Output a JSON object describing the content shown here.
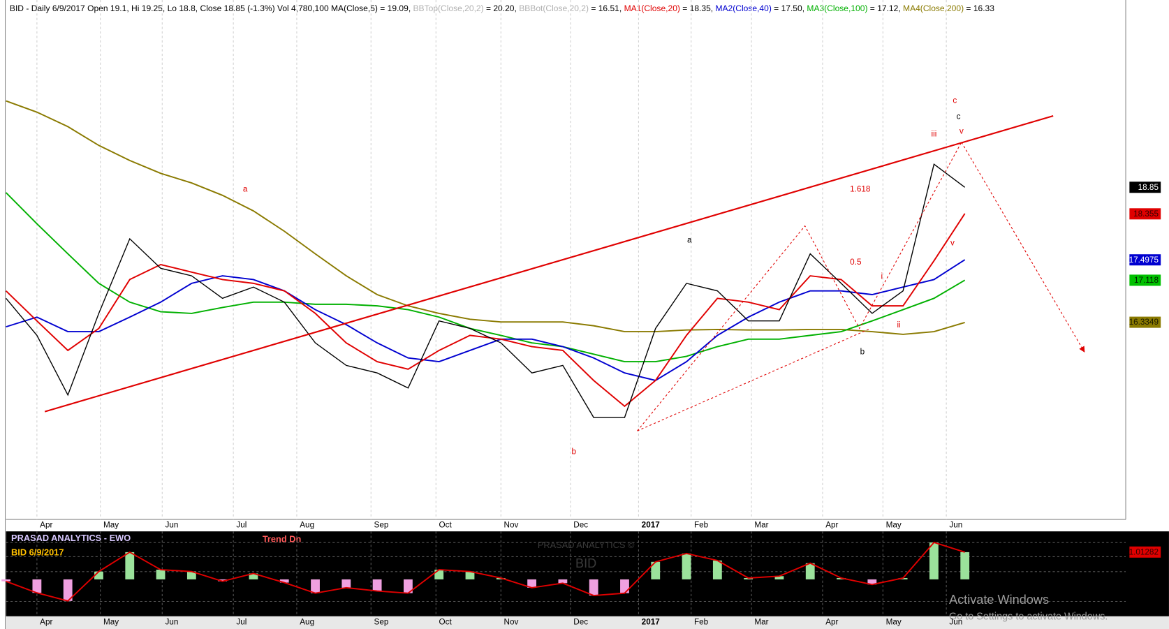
{
  "chart_data": [
    {
      "type": "line",
      "header": [
        {
          "text": "BID - Daily 6/9/2017 Open 19.1, Hi 19.25, Lo 18.8, Close 18.85 (-1.3%) Vol 4,780,100 MA(Close,5) = 19.09, ",
          "color": "#000000"
        },
        {
          "text": "BBTop(Close,20,2)",
          "color": "#b0b0b0"
        },
        {
          "text": " = 20.20, ",
          "color": "#000000"
        },
        {
          "text": "BBBot(Close,20,2)",
          "color": "#b0b0b0"
        },
        {
          "text": " = 16.51, ",
          "color": "#000000"
        },
        {
          "text": "MA1(Close,20)",
          "color": "#e00000"
        },
        {
          "text": " = 18.35, ",
          "color": "#000000"
        },
        {
          "text": "MA2(Close,40)",
          "color": "#0000d0"
        },
        {
          "text": " = 17.50, ",
          "color": "#000000"
        },
        {
          "text": "MA3(Close,100)",
          "color": "#00b000"
        },
        {
          "text": " = 17.12, ",
          "color": "#000000"
        },
        {
          "text": "MA4(Close,200)",
          "color": "#8a7a00"
        },
        {
          "text": " = 16.33",
          "color": "#000000"
        }
      ],
      "x": [
        0,
        2,
        4,
        6,
        8,
        10,
        12,
        14,
        16,
        18,
        20,
        22,
        24,
        26,
        28,
        30,
        32,
        34,
        36,
        38,
        40,
        42,
        44,
        46,
        48,
        50,
        52,
        54,
        56,
        58,
        60,
        62
      ],
      "xlim": [
        0,
        72.4
      ],
      "xticks": [
        {
          "value": 2.0,
          "label": "Apr"
        },
        {
          "value": 6.1,
          "label": "May"
        },
        {
          "value": 10.1,
          "label": "Jun"
        },
        {
          "value": 14.7,
          "label": "Jul"
        },
        {
          "value": 18.8,
          "label": "Aug"
        },
        {
          "value": 23.6,
          "label": "Sep"
        },
        {
          "value": 27.8,
          "label": "Oct"
        },
        {
          "value": 32.0,
          "label": "Nov"
        },
        {
          "value": 36.5,
          "label": "Dec"
        },
        {
          "value": 40.9,
          "label": "2017"
        },
        {
          "value": 44.3,
          "label": "Feb"
        },
        {
          "value": 48.2,
          "label": "Mar"
        },
        {
          "value": 52.8,
          "label": "Apr"
        },
        {
          "value": 56.7,
          "label": "May"
        },
        {
          "value": 60.8,
          "label": "Jun"
        }
      ],
      "ylim": [
        12.66,
        22.34
      ],
      "grid": true,
      "series": [
        {
          "color": "#8a7a00",
          "values": [
            20.46,
            20.25,
            19.98,
            19.63,
            19.35,
            19.11,
            18.93,
            18.7,
            18.41,
            18.03,
            17.61,
            17.2,
            16.85,
            16.64,
            16.5,
            16.39,
            16.34,
            16.34,
            16.34,
            16.27,
            16.16,
            16.16,
            16.19,
            16.2,
            16.19,
            16.19,
            16.2,
            16.2,
            16.16,
            16.11,
            16.16,
            16.33
          ]
        },
        {
          "color": "#00b000",
          "values": [
            18.75,
            18.17,
            17.61,
            17.06,
            16.71,
            16.53,
            16.5,
            16.61,
            16.71,
            16.71,
            16.67,
            16.67,
            16.64,
            16.57,
            16.43,
            16.22,
            16.09,
            15.95,
            15.88,
            15.74,
            15.6,
            15.6,
            15.7,
            15.88,
            16.02,
            16.02,
            16.09,
            16.16,
            16.36,
            16.57,
            16.78,
            17.12
          ]
        },
        {
          "color": "#0000d0",
          "values": [
            16.25,
            16.43,
            16.16,
            16.16,
            16.43,
            16.71,
            17.06,
            17.2,
            17.13,
            16.92,
            16.57,
            16.29,
            15.95,
            15.67,
            15.6,
            15.81,
            16.02,
            16.02,
            15.88,
            15.67,
            15.39,
            15.25,
            15.6,
            16.09,
            16.43,
            16.71,
            16.92,
            16.92,
            16.85,
            16.99,
            17.13,
            17.5
          ]
        },
        {
          "color": "#e00000",
          "values": [
            16.92,
            16.36,
            15.81,
            16.22,
            17.13,
            17.41,
            17.27,
            17.13,
            17.06,
            16.92,
            16.5,
            15.95,
            15.6,
            15.46,
            15.81,
            16.09,
            16.02,
            15.88,
            15.81,
            15.25,
            14.77,
            15.25,
            16.09,
            16.78,
            16.71,
            16.57,
            17.2,
            17.13,
            16.64,
            16.64,
            17.48,
            18.36
          ]
        },
        {
          "color": "#000000",
          "values": [
            16.78,
            16.09,
            14.98,
            16.5,
            17.89,
            17.34,
            17.2,
            16.78,
            16.99,
            16.71,
            15.95,
            15.53,
            15.39,
            15.11,
            16.36,
            16.22,
            15.95,
            15.39,
            15.53,
            14.56,
            14.56,
            16.22,
            17.06,
            16.92,
            16.36,
            16.36,
            17.61,
            17.06,
            16.5,
            16.92,
            19.28,
            18.85
          ]
        }
      ],
      "price_tags": [
        {
          "value": 18.85,
          "color": "#000000",
          "text_color": "#ffffff"
        },
        {
          "value": 18.355,
          "color": "#e00000",
          "text_color": "#300000"
        },
        {
          "value": 17.4975,
          "color": "#0000d0",
          "text_color": "#ffffff"
        },
        {
          "value": 17.118,
          "color": "#00c000",
          "text_color": "#002000"
        },
        {
          "value": 16.3349,
          "color": "#8a7a00",
          "text_color": "#1a1a00"
        }
      ],
      "trend_lines": [
        {
          "x": [
            2.51,
            67.71
          ],
          "y": [
            14.67,
            20.18
          ],
          "color": "#e00000",
          "dashed": false,
          "arrow": false
        },
        {
          "x": [
            40.82,
            55.9
          ],
          "y": [
            14.31,
            16.22
          ],
          "color": "#e00000",
          "dashed": true,
          "arrow": false
        },
        {
          "x": [
            40.82,
            51.66,
            55.18,
            61.78
          ],
          "y": [
            14.31,
            18.13,
            16.22,
            19.69
          ],
          "color": "#e00000",
          "dashed": true,
          "arrow": false
        },
        {
          "x": [
            61.78,
            69.73
          ],
          "y": [
            19.69,
            15.78
          ],
          "color": "#e00000",
          "dashed": true,
          "arrow": true
        }
      ],
      "annotations": [
        {
          "text": "a",
          "x": 15.47,
          "y": 18.81,
          "color": "#e00000"
        },
        {
          "text": "b",
          "x": 36.72,
          "y": 13.92,
          "color": "#e00000"
        },
        {
          "text": "a",
          "x": 44.19,
          "y": 17.86,
          "color": "#000000"
        },
        {
          "text": "b",
          "x": 55.37,
          "y": 15.78,
          "color": "#000000"
        },
        {
          "text": "c",
          "x": 61.59,
          "y": 20.16,
          "color": "#000000"
        },
        {
          "text": "c",
          "x": 61.35,
          "y": 20.46,
          "color": "#e00000"
        },
        {
          "text": "iii",
          "x": 60.0,
          "y": 19.84,
          "color": "#e00000"
        },
        {
          "text": "v",
          "x": 61.78,
          "y": 19.89,
          "color": "#e00000"
        },
        {
          "text": "i",
          "x": 56.63,
          "y": 17.18,
          "color": "#e00000"
        },
        {
          "text": "ii",
          "x": 57.73,
          "y": 16.28,
          "color": "#e00000"
        },
        {
          "text": "v",
          "x": 61.2,
          "y": 17.81,
          "color": "#e00000"
        },
        {
          "text": "0.5",
          "x": 54.94,
          "y": 17.45,
          "color": "#e00000"
        },
        {
          "text": "1.618",
          "x": 55.23,
          "y": 18.81,
          "color": "#e00000"
        }
      ]
    },
    {
      "type": "bar",
      "title": "PRASAD ANALYTICS - EWO",
      "subtitle": "BID  6/9/2017",
      "signal": "Trend Dn",
      "watermark": [
        "PRASAD ANALYTICS ©",
        "BID"
      ],
      "x": [
        0,
        2,
        4,
        6,
        8,
        10,
        12,
        14,
        16,
        18,
        20,
        22,
        24,
        26,
        28,
        30,
        32,
        34,
        36,
        38,
        40,
        42,
        44,
        46,
        48,
        50,
        52,
        54,
        56,
        58,
        60,
        62
      ],
      "xlim": [
        0,
        72.4
      ],
      "xticks": [
        {
          "value": 2.0,
          "label": "Apr"
        },
        {
          "value": 6.1,
          "label": "May"
        },
        {
          "value": 10.1,
          "label": "Jun"
        },
        {
          "value": 14.7,
          "label": "Jul"
        },
        {
          "value": 18.8,
          "label": "Aug"
        },
        {
          "value": 23.6,
          "label": "Sep"
        },
        {
          "value": 27.8,
          "label": "Oct"
        },
        {
          "value": 32.0,
          "label": "Nov"
        },
        {
          "value": 36.5,
          "label": "Dec"
        },
        {
          "value": 40.9,
          "label": "2017"
        },
        {
          "value": 44.3,
          "label": "Feb"
        },
        {
          "value": 48.2,
          "label": "Mar"
        },
        {
          "value": 52.8,
          "label": "Apr"
        },
        {
          "value": 56.7,
          "label": "May"
        },
        {
          "value": 60.8,
          "label": "Jun"
        }
      ],
      "ylim": [
        -1.37,
        1.78
      ],
      "values": [
        -0.07,
        -0.5,
        -0.8,
        0.29,
        1.01,
        0.36,
        0.29,
        -0.07,
        0.22,
        -0.12,
        -0.51,
        -0.31,
        -0.43,
        -0.51,
        0.36,
        0.29,
        0.05,
        -0.31,
        -0.14,
        -0.6,
        -0.51,
        0.65,
        0.96,
        0.7,
        0.05,
        0.12,
        0.6,
        0.05,
        -0.19,
        0.05,
        1.37,
        1.01
      ],
      "colors": {
        "positive": "#9be29b",
        "negative": "#f0a0e0",
        "line": "#e00000"
      },
      "price_tags": [
        {
          "value": 1.01282,
          "color": "#e00000",
          "text_color": "#300000"
        }
      ]
    }
  ],
  "watermark": {
    "title": "Activate Windows",
    "subtitle": "Go to Settings to activate Windows."
  }
}
